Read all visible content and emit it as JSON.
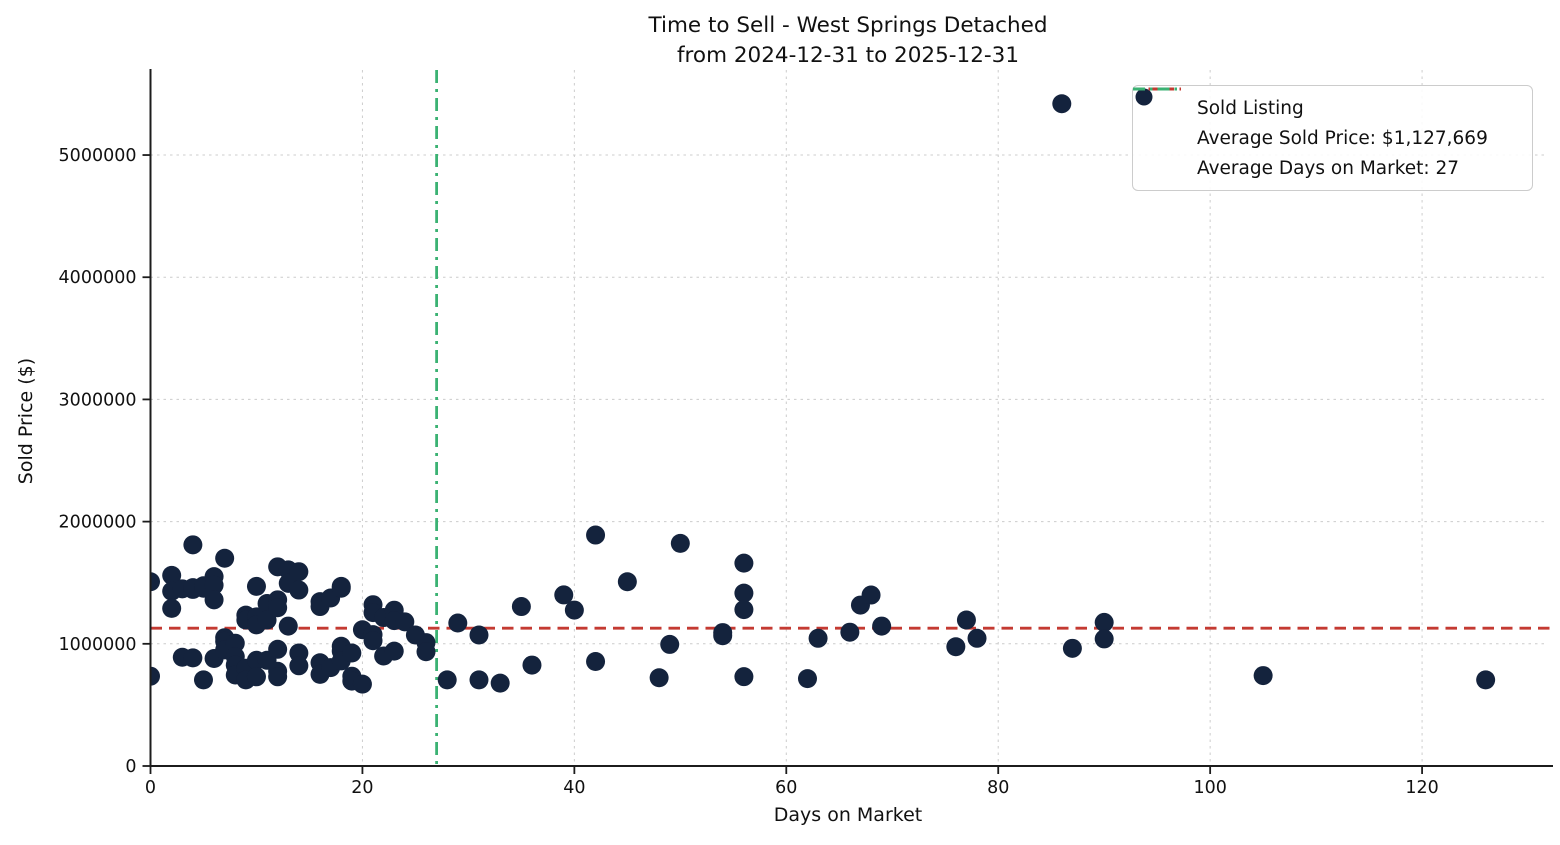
{
  "title": {
    "line1": "Time to Sell - West Springs Detached",
    "line2": "from 2024-12-31 to 2025-12-31"
  },
  "axes": {
    "xlabel": "Days on Market",
    "ylabel": "Sold Price ($)"
  },
  "legend": {
    "items": [
      {
        "label": "Sold Listing",
        "swatch": "marker"
      },
      {
        "label": "Average Sold Price: $1,127,669",
        "swatch": "dashed-line"
      },
      {
        "label": "Average Days on Market: 27",
        "swatch": "dashdot-line"
      }
    ],
    "position": "upper right"
  },
  "colors": {
    "marker": "#14233d",
    "avg_price_line": "#c43a32",
    "avg_days_line": "#3bb273",
    "grid": "#cccccc",
    "spine": "#1c1c1c",
    "text": "#111111",
    "legend_border": "#cccccc",
    "background": "#ffffff"
  },
  "chart_data": {
    "type": "scatter",
    "title": "Time to Sell - West Springs Detached from 2024-12-31 to 2025-12-31",
    "xlabel": "Days on Market",
    "ylabel": "Sold Price ($)",
    "series_name": "Sold Listing",
    "xlim": [
      0,
      131.6
    ],
    "ylim": [
      0,
      5655000
    ],
    "x_ticks": [
      0,
      20,
      40,
      60,
      80,
      100,
      120
    ],
    "y_ticks": [
      0,
      1000000,
      2000000,
      3000000,
      4000000,
      5000000
    ],
    "grid": true,
    "avg_sold_price": 1127669,
    "avg_sold_price_label": "Average Sold Price: $1,127,669",
    "avg_days_on_market": 27,
    "avg_days_on_market_label": "Average Days on Market: 27",
    "points": [
      [
        0,
        1508000
      ],
      [
        0,
        735000
      ],
      [
        2,
        1560000
      ],
      [
        2,
        1430000
      ],
      [
        2,
        1290000
      ],
      [
        3,
        1450000
      ],
      [
        3,
        890000
      ],
      [
        4,
        1810000
      ],
      [
        4,
        1445000
      ],
      [
        4,
        1460000
      ],
      [
        4,
        885000
      ],
      [
        5,
        1455000
      ],
      [
        5,
        1475000
      ],
      [
        5,
        705000
      ],
      [
        6,
        1550000
      ],
      [
        6,
        1480000
      ],
      [
        6,
        1360000
      ],
      [
        6,
        880000
      ],
      [
        7,
        1700000
      ],
      [
        7,
        1050000
      ],
      [
        7,
        1020000
      ],
      [
        7,
        950000
      ],
      [
        8,
        1005000
      ],
      [
        8,
        895000
      ],
      [
        8,
        826000
      ],
      [
        8,
        745000
      ],
      [
        9,
        1235000
      ],
      [
        9,
        1195000
      ],
      [
        9,
        800000
      ],
      [
        9,
        705000
      ],
      [
        10,
        1470000
      ],
      [
        10,
        1220000
      ],
      [
        10,
        1155000
      ],
      [
        10,
        865000
      ],
      [
        10,
        730000
      ],
      [
        11,
        1330000
      ],
      [
        11,
        1195000
      ],
      [
        11,
        865000
      ],
      [
        12,
        1630000
      ],
      [
        12,
        1360000
      ],
      [
        12,
        1295000
      ],
      [
        12,
        955000
      ],
      [
        12,
        775000
      ],
      [
        12,
        730000
      ],
      [
        13,
        1605000
      ],
      [
        13,
        1495000
      ],
      [
        13,
        1145000
      ],
      [
        14,
        1590000
      ],
      [
        14,
        1440000
      ],
      [
        14,
        925000
      ],
      [
        14,
        820000
      ],
      [
        16,
        1345000
      ],
      [
        16,
        1305000
      ],
      [
        16,
        845000
      ],
      [
        16,
        750000
      ],
      [
        17,
        1375000
      ],
      [
        17,
        805000
      ],
      [
        18,
        1470000
      ],
      [
        18,
        1455000
      ],
      [
        18,
        980000
      ],
      [
        18,
        940000
      ],
      [
        18,
        860000
      ],
      [
        19,
        925000
      ],
      [
        19,
        735000
      ],
      [
        19,
        695000
      ],
      [
        20,
        1115000
      ],
      [
        20,
        670000
      ],
      [
        21,
        1320000
      ],
      [
        21,
        1255000
      ],
      [
        21,
        1075000
      ],
      [
        21,
        1025000
      ],
      [
        22,
        1215000
      ],
      [
        22,
        900000
      ],
      [
        23,
        1275000
      ],
      [
        23,
        1190000
      ],
      [
        23,
        940000
      ],
      [
        24,
        1180000
      ],
      [
        25,
        1072000
      ],
      [
        26,
        1010000
      ],
      [
        26,
        935000
      ],
      [
        28,
        705000
      ],
      [
        29,
        1170000
      ],
      [
        31,
        1072000
      ],
      [
        31,
        705000
      ],
      [
        33,
        678000
      ],
      [
        35,
        1305000
      ],
      [
        36,
        826000
      ],
      [
        39,
        1400000
      ],
      [
        40,
        1276000
      ],
      [
        42,
        1890000
      ],
      [
        42,
        855000
      ],
      [
        45,
        1508000
      ],
      [
        48,
        722000
      ],
      [
        49,
        995000
      ],
      [
        50,
        1822000
      ],
      [
        54,
        1092000
      ],
      [
        54,
        1066000
      ],
      [
        56,
        1660000
      ],
      [
        56,
        1415000
      ],
      [
        56,
        1280000
      ],
      [
        56,
        731000
      ],
      [
        62,
        715000
      ],
      [
        63,
        1045000
      ],
      [
        66,
        1095000
      ],
      [
        67,
        1317000
      ],
      [
        68,
        1399000
      ],
      [
        69,
        1145000
      ],
      [
        76,
        976000
      ],
      [
        77,
        1195000
      ],
      [
        78,
        1045000
      ],
      [
        86,
        5420000
      ],
      [
        87,
        963000
      ],
      [
        90,
        1175000
      ],
      [
        90,
        1040000
      ],
      [
        105,
        740000
      ],
      [
        126,
        705000
      ]
    ]
  }
}
